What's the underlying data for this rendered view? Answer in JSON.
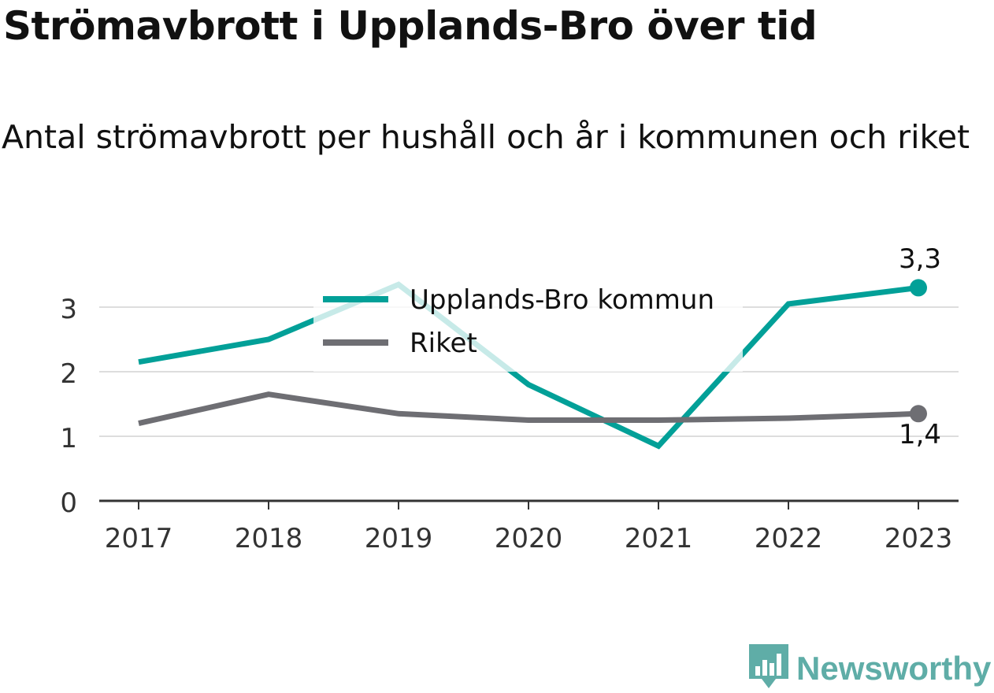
{
  "title": "Strömavbrott i Upplands-Bro över tid",
  "subtitle": "Antal strömavbrott per hushåll och år i kommunen och riket",
  "brand": {
    "name": "Newsworthy",
    "logo_icon": "bar-chart-badge-icon",
    "color": "#5fada7"
  },
  "chart_data": {
    "type": "line",
    "x": [
      "2017",
      "2018",
      "2019",
      "2020",
      "2021",
      "2022",
      "2023"
    ],
    "yticks": [
      "0",
      "1",
      "2",
      "3"
    ],
    "ylim": [
      0,
      3.5
    ],
    "grid": true,
    "legend_position": "top-center",
    "series": [
      {
        "name": "Upplands-Bro kommun",
        "values": [
          2.15,
          2.5,
          3.35,
          1.8,
          0.85,
          3.05,
          3.3
        ],
        "color": "#02a098",
        "end_label": "3,3"
      },
      {
        "name": "Riket",
        "values": [
          1.2,
          1.65,
          1.35,
          1.25,
          1.25,
          1.28,
          1.35
        ],
        "color": "#6e6e73",
        "end_label": "1,4"
      }
    ]
  }
}
